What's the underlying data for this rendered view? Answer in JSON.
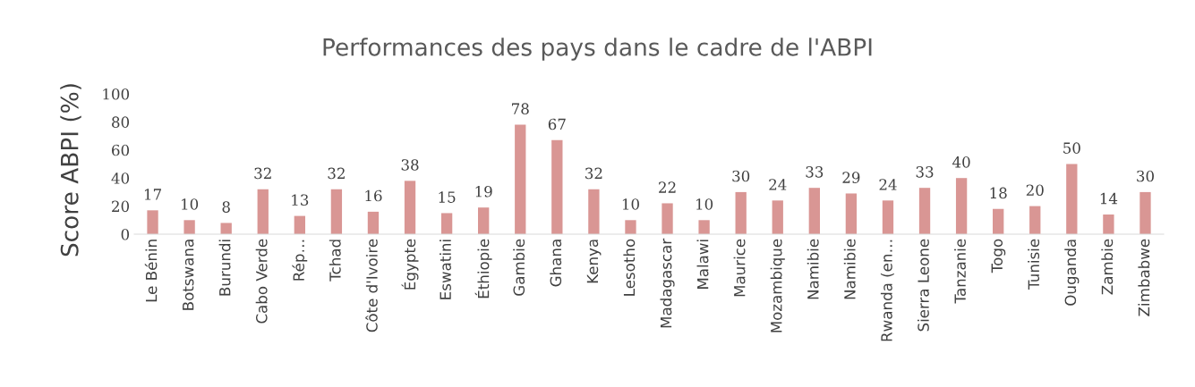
{
  "chart_data": {
    "type": "bar",
    "title": "Performances des pays dans le cadre de l'ABPI",
    "ylabel": "Score ABPI (%)",
    "categories": [
      "Le Bénin",
      "Botswana",
      "Burundi",
      "Cabo Verde",
      "Rép…",
      "Tchad",
      "Côte d'Ivoire",
      "Égypte",
      "Eswatini",
      "Éthiopie",
      "Gambie",
      "Ghana",
      "Kenya",
      "Lesotho",
      "Madagascar",
      "Malawi",
      "Maurice",
      "Mozambique",
      "Namibie",
      "Namibie",
      "Rwanda (en…",
      "Sierra Leone",
      "Tanzanie",
      "Togo",
      "Tunisie",
      "Ouganda",
      "Zambie",
      "Zimbabwe"
    ],
    "values": [
      17,
      10,
      8,
      32,
      13,
      32,
      16,
      38,
      15,
      19,
      78,
      67,
      32,
      10,
      22,
      10,
      30,
      24,
      33,
      29,
      24,
      33,
      40,
      18,
      20,
      50,
      14,
      30
    ],
    "color": "#d99694",
    "ylim": [
      0,
      100
    ],
    "yticks": [
      0,
      20,
      40,
      60,
      80,
      100
    ],
    "grid": false,
    "data_labels": true
  }
}
